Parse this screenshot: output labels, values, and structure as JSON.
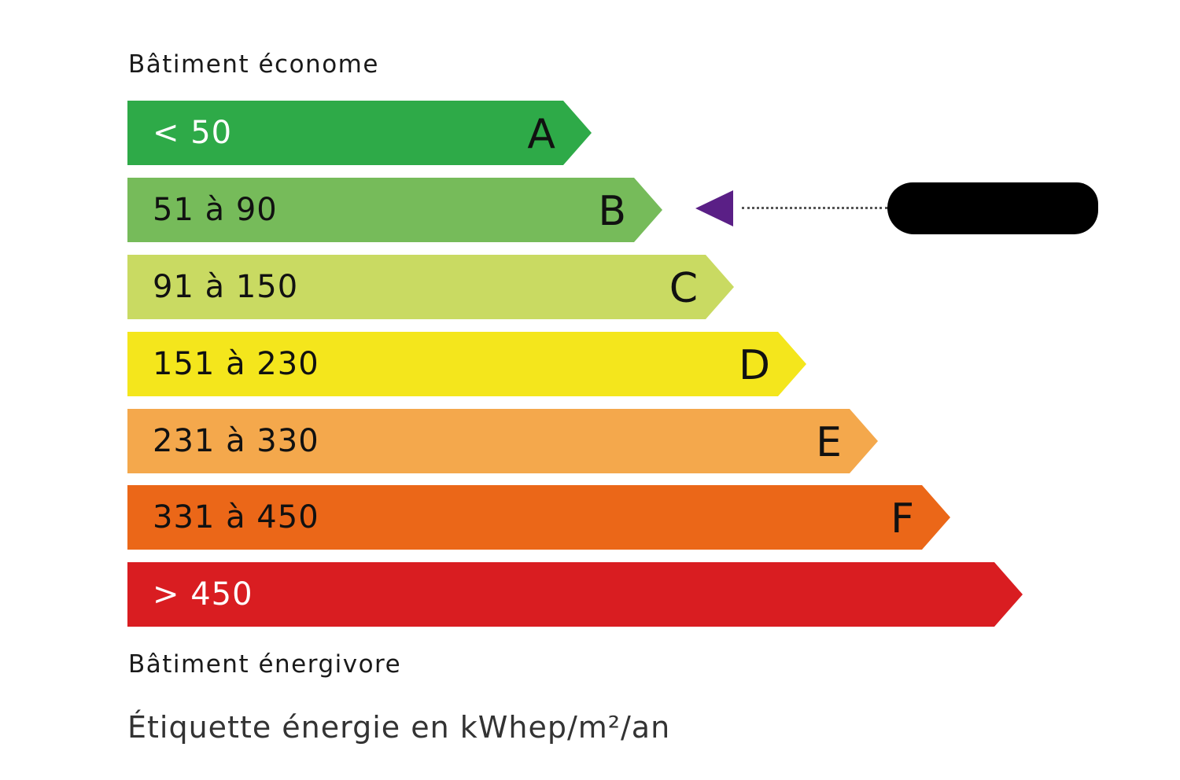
{
  "top_label": "Bâtiment économe",
  "bottom_label": "Bâtiment énergivore",
  "footer": "Étiquette énergie en kWhep/m²/an",
  "classes": [
    {
      "letter": "A",
      "range": "< 50",
      "color": "#2eaa48"
    },
    {
      "letter": "B",
      "range": "51 à 90",
      "color": "#76bb5a"
    },
    {
      "letter": "C",
      "range": "91 à 150",
      "color": "#c9da62"
    },
    {
      "letter": "D",
      "range": "151 à 230",
      "color": "#f4e61c"
    },
    {
      "letter": "E",
      "range": "231 à 330",
      "color": "#f4a84c"
    },
    {
      "letter": "F",
      "range": "331 à 450",
      "color": "#eb6718"
    },
    {
      "letter": "",
      "range": "> 450",
      "color": "#d91d21"
    }
  ],
  "indicator": {
    "class": "B",
    "color": "#5a1f86",
    "value_redacted": true
  }
}
